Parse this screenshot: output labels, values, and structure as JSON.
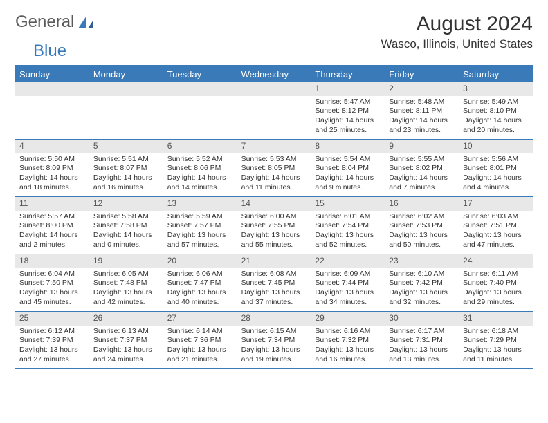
{
  "brand": {
    "part1": "General",
    "part2": "Blue"
  },
  "title": "August 2024",
  "location": "Wasco, Illinois, United States",
  "colors": {
    "accent": "#3a7ab8",
    "daynum_bg": "#e8e8e8",
    "text": "#333333",
    "background": "#ffffff"
  },
  "weekdays": [
    "Sunday",
    "Monday",
    "Tuesday",
    "Wednesday",
    "Thursday",
    "Friday",
    "Saturday"
  ],
  "weeks": [
    [
      null,
      null,
      null,
      null,
      {
        "d": "1",
        "sr": "5:47 AM",
        "ss": "8:12 PM",
        "dl": "14 hours and 25 minutes."
      },
      {
        "d": "2",
        "sr": "5:48 AM",
        "ss": "8:11 PM",
        "dl": "14 hours and 23 minutes."
      },
      {
        "d": "3",
        "sr": "5:49 AM",
        "ss": "8:10 PM",
        "dl": "14 hours and 20 minutes."
      }
    ],
    [
      {
        "d": "4",
        "sr": "5:50 AM",
        "ss": "8:09 PM",
        "dl": "14 hours and 18 minutes."
      },
      {
        "d": "5",
        "sr": "5:51 AM",
        "ss": "8:07 PM",
        "dl": "14 hours and 16 minutes."
      },
      {
        "d": "6",
        "sr": "5:52 AM",
        "ss": "8:06 PM",
        "dl": "14 hours and 14 minutes."
      },
      {
        "d": "7",
        "sr": "5:53 AM",
        "ss": "8:05 PM",
        "dl": "14 hours and 11 minutes."
      },
      {
        "d": "8",
        "sr": "5:54 AM",
        "ss": "8:04 PM",
        "dl": "14 hours and 9 minutes."
      },
      {
        "d": "9",
        "sr": "5:55 AM",
        "ss": "8:02 PM",
        "dl": "14 hours and 7 minutes."
      },
      {
        "d": "10",
        "sr": "5:56 AM",
        "ss": "8:01 PM",
        "dl": "14 hours and 4 minutes."
      }
    ],
    [
      {
        "d": "11",
        "sr": "5:57 AM",
        "ss": "8:00 PM",
        "dl": "14 hours and 2 minutes."
      },
      {
        "d": "12",
        "sr": "5:58 AM",
        "ss": "7:58 PM",
        "dl": "14 hours and 0 minutes."
      },
      {
        "d": "13",
        "sr": "5:59 AM",
        "ss": "7:57 PM",
        "dl": "13 hours and 57 minutes."
      },
      {
        "d": "14",
        "sr": "6:00 AM",
        "ss": "7:55 PM",
        "dl": "13 hours and 55 minutes."
      },
      {
        "d": "15",
        "sr": "6:01 AM",
        "ss": "7:54 PM",
        "dl": "13 hours and 52 minutes."
      },
      {
        "d": "16",
        "sr": "6:02 AM",
        "ss": "7:53 PM",
        "dl": "13 hours and 50 minutes."
      },
      {
        "d": "17",
        "sr": "6:03 AM",
        "ss": "7:51 PM",
        "dl": "13 hours and 47 minutes."
      }
    ],
    [
      {
        "d": "18",
        "sr": "6:04 AM",
        "ss": "7:50 PM",
        "dl": "13 hours and 45 minutes."
      },
      {
        "d": "19",
        "sr": "6:05 AM",
        "ss": "7:48 PM",
        "dl": "13 hours and 42 minutes."
      },
      {
        "d": "20",
        "sr": "6:06 AM",
        "ss": "7:47 PM",
        "dl": "13 hours and 40 minutes."
      },
      {
        "d": "21",
        "sr": "6:08 AM",
        "ss": "7:45 PM",
        "dl": "13 hours and 37 minutes."
      },
      {
        "d": "22",
        "sr": "6:09 AM",
        "ss": "7:44 PM",
        "dl": "13 hours and 34 minutes."
      },
      {
        "d": "23",
        "sr": "6:10 AM",
        "ss": "7:42 PM",
        "dl": "13 hours and 32 minutes."
      },
      {
        "d": "24",
        "sr": "6:11 AM",
        "ss": "7:40 PM",
        "dl": "13 hours and 29 minutes."
      }
    ],
    [
      {
        "d": "25",
        "sr": "6:12 AM",
        "ss": "7:39 PM",
        "dl": "13 hours and 27 minutes."
      },
      {
        "d": "26",
        "sr": "6:13 AM",
        "ss": "7:37 PM",
        "dl": "13 hours and 24 minutes."
      },
      {
        "d": "27",
        "sr": "6:14 AM",
        "ss": "7:36 PM",
        "dl": "13 hours and 21 minutes."
      },
      {
        "d": "28",
        "sr": "6:15 AM",
        "ss": "7:34 PM",
        "dl": "13 hours and 19 minutes."
      },
      {
        "d": "29",
        "sr": "6:16 AM",
        "ss": "7:32 PM",
        "dl": "13 hours and 16 minutes."
      },
      {
        "d": "30",
        "sr": "6:17 AM",
        "ss": "7:31 PM",
        "dl": "13 hours and 13 minutes."
      },
      {
        "d": "31",
        "sr": "6:18 AM",
        "ss": "7:29 PM",
        "dl": "13 hours and 11 minutes."
      }
    ]
  ],
  "labels": {
    "sunrise": "Sunrise:",
    "sunset": "Sunset:",
    "daylight": "Daylight:"
  }
}
